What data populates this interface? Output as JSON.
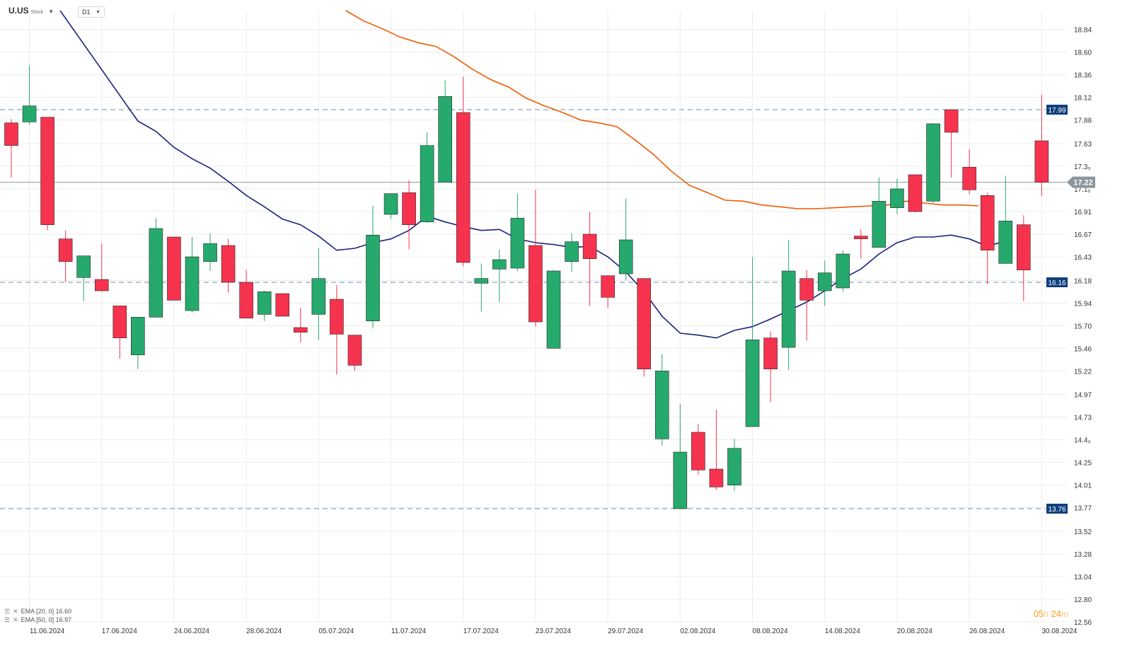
{
  "header": {
    "symbol": "U.US",
    "type": "Stock",
    "timeframe": "D1"
  },
  "indicators": [
    {
      "label": "EMA [20, 0] 16.60",
      "color": "#1a237e"
    },
    {
      "label": "EMA [50, 0] 16.97",
      "color": "#ee5a00"
    }
  ],
  "timer": {
    "hours": "05",
    "hours_unit": "h",
    "minutes": "24",
    "minutes_unit": "m"
  },
  "colors": {
    "up": "#26a96c",
    "down": "#f6334e",
    "ema20": "#1a237e",
    "ema50": "#ee5a00",
    "hline": "#6b8fb5",
    "label_bg": "#0f3f7c",
    "grid": "#ececec"
  },
  "chart_data": {
    "type": "candlestick",
    "symbol": "U.US",
    "timeframe": "D1",
    "ylim": [
      12.56,
      19.04
    ],
    "y_ticks": [
      12.56,
      12.8,
      13.04,
      13.28,
      13.52,
      13.77,
      14.01,
      14.25,
      14.49,
      14.73,
      14.97,
      15.22,
      15.46,
      15.7,
      15.94,
      16.18,
      16.43,
      16.67,
      16.91,
      17.15,
      17.39,
      17.63,
      17.88,
      18.12,
      18.36,
      18.6,
      18.84
    ],
    "y_tick_labels": [
      "12.56",
      "12.80",
      "13.04",
      "13.28",
      "13.52",
      "13.77",
      "14.01",
      "14.25",
      "14.4₉",
      "14.73",
      "14.97",
      "15.22",
      "15.46",
      "15.70",
      "15.94",
      "16.18",
      "16.43",
      "16.67",
      "16.91",
      "17.1₅",
      "17.3₉",
      "17.63",
      "17.88",
      "18.12",
      "18.36",
      "18.60",
      "18.84"
    ],
    "x_labels": [
      {
        "i": 1,
        "label": "11.06.2024"
      },
      {
        "i": 5,
        "label": "17.06.2024"
      },
      {
        "i": 9,
        "label": "24.06.2024"
      },
      {
        "i": 13,
        "label": "28.06.2024"
      },
      {
        "i": 17,
        "label": "05.07.2024"
      },
      {
        "i": 21,
        "label": "11.07.2024"
      },
      {
        "i": 25,
        "label": "17.07.2024"
      },
      {
        "i": 29,
        "label": "23.07.2024"
      },
      {
        "i": 33,
        "label": "29.07.2024"
      },
      {
        "i": 37,
        "label": "02.08.2024"
      },
      {
        "i": 41,
        "label": "08.08.2024"
      },
      {
        "i": 45,
        "label": "14.08.2024"
      },
      {
        "i": 49,
        "label": "20.08.2024"
      },
      {
        "i": 53,
        "label": "26.08.2024"
      },
      {
        "i": 57,
        "label": "30.08.2024"
      }
    ],
    "candles": [
      {
        "o": 17.85,
        "h": 17.89,
        "l": 17.27,
        "c": 17.61
      },
      {
        "o": 17.86,
        "h": 18.46,
        "l": 17.83,
        "c": 18.03
      },
      {
        "o": 17.91,
        "h": 17.91,
        "l": 16.71,
        "c": 16.77
      },
      {
        "o": 16.62,
        "h": 16.71,
        "l": 16.16,
        "c": 16.38
      },
      {
        "o": 16.21,
        "h": 16.43,
        "l": 15.96,
        "c": 16.44
      },
      {
        "o": 16.19,
        "h": 16.57,
        "l": 16.06,
        "c": 16.07
      },
      {
        "o": 15.91,
        "h": 15.91,
        "l": 15.35,
        "c": 15.57
      },
      {
        "o": 15.39,
        "h": 15.77,
        "l": 15.24,
        "c": 15.79
      },
      {
        "o": 15.79,
        "h": 16.84,
        "l": 15.79,
        "c": 16.73
      },
      {
        "o": 16.64,
        "h": 16.64,
        "l": 15.97,
        "c": 15.97
      },
      {
        "o": 15.86,
        "h": 16.64,
        "l": 15.84,
        "c": 16.43
      },
      {
        "o": 16.38,
        "h": 16.68,
        "l": 16.28,
        "c": 16.57
      },
      {
        "o": 16.55,
        "h": 16.62,
        "l": 16.05,
        "c": 16.16
      },
      {
        "o": 16.16,
        "h": 16.29,
        "l": 15.78,
        "c": 15.78
      },
      {
        "o": 15.82,
        "h": 16.07,
        "l": 15.75,
        "c": 16.06
      },
      {
        "o": 16.04,
        "h": 16.04,
        "l": 15.84,
        "c": 15.8
      },
      {
        "o": 15.68,
        "h": 15.89,
        "l": 15.52,
        "c": 15.63
      },
      {
        "o": 15.82,
        "h": 16.52,
        "l": 15.55,
        "c": 16.2
      },
      {
        "o": 15.98,
        "h": 16.13,
        "l": 15.18,
        "c": 15.61
      },
      {
        "o": 15.6,
        "h": 15.6,
        "l": 15.22,
        "c": 15.28
      },
      {
        "o": 15.75,
        "h": 16.97,
        "l": 15.67,
        "c": 16.66
      },
      {
        "o": 16.88,
        "h": 17.09,
        "l": 16.83,
        "c": 17.1
      },
      {
        "o": 17.11,
        "h": 17.24,
        "l": 16.51,
        "c": 16.77
      },
      {
        "o": 16.8,
        "h": 17.75,
        "l": 16.79,
        "c": 17.61
      },
      {
        "o": 17.22,
        "h": 18.3,
        "l": 17.22,
        "c": 18.13
      },
      {
        "o": 17.96,
        "h": 18.34,
        "l": 16.33,
        "c": 16.37
      },
      {
        "o": 16.15,
        "h": 16.36,
        "l": 15.85,
        "c": 16.2
      },
      {
        "o": 16.3,
        "h": 16.51,
        "l": 15.95,
        "c": 16.4
      },
      {
        "o": 16.31,
        "h": 17.1,
        "l": 16.28,
        "c": 16.84
      },
      {
        "o": 16.55,
        "h": 17.14,
        "l": 15.69,
        "c": 15.74
      },
      {
        "o": 15.46,
        "h": 16.29,
        "l": 15.46,
        "c": 16.28
      },
      {
        "o": 16.38,
        "h": 16.68,
        "l": 16.27,
        "c": 16.59
      },
      {
        "o": 16.67,
        "h": 16.91,
        "l": 15.91,
        "c": 16.41
      },
      {
        "o": 16.23,
        "h": 16.23,
        "l": 15.89,
        "c": 16.0
      },
      {
        "o": 16.25,
        "h": 17.05,
        "l": 16.18,
        "c": 16.61
      },
      {
        "o": 16.2,
        "h": 16.2,
        "l": 15.16,
        "c": 15.24
      },
      {
        "o": 14.5,
        "h": 15.4,
        "l": 14.43,
        "c": 15.22
      },
      {
        "o": 13.76,
        "h": 14.87,
        "l": 13.76,
        "c": 14.36
      },
      {
        "o": 14.57,
        "h": 14.66,
        "l": 14.12,
        "c": 14.17
      },
      {
        "o": 14.18,
        "h": 14.81,
        "l": 13.96,
        "c": 13.99
      },
      {
        "o": 14.01,
        "h": 14.5,
        "l": 13.95,
        "c": 14.4
      },
      {
        "o": 14.63,
        "h": 16.43,
        "l": 14.63,
        "c": 15.55
      },
      {
        "o": 15.57,
        "h": 15.64,
        "l": 14.89,
        "c": 15.24
      },
      {
        "o": 15.47,
        "h": 16.61,
        "l": 15.23,
        "c": 16.28
      },
      {
        "o": 16.2,
        "h": 16.29,
        "l": 15.54,
        "c": 15.97
      },
      {
        "o": 16.07,
        "h": 16.39,
        "l": 15.91,
        "c": 16.26
      },
      {
        "o": 16.1,
        "h": 16.5,
        "l": 16.06,
        "c": 16.46
      },
      {
        "o": 16.65,
        "h": 16.72,
        "l": 16.41,
        "c": 16.62
      },
      {
        "o": 16.53,
        "h": 17.27,
        "l": 16.53,
        "c": 17.02
      },
      {
        "o": 16.95,
        "h": 17.26,
        "l": 16.88,
        "c": 17.15
      },
      {
        "o": 17.3,
        "h": 17.3,
        "l": 16.9,
        "c": 16.91
      },
      {
        "o": 17.02,
        "h": 17.85,
        "l": 17.0,
        "c": 17.84
      },
      {
        "o": 17.99,
        "h": 17.99,
        "l": 17.27,
        "c": 17.75
      },
      {
        "o": 17.38,
        "h": 17.57,
        "l": 17.09,
        "c": 17.14
      },
      {
        "o": 17.08,
        "h": 17.11,
        "l": 16.14,
        "c": 16.5
      },
      {
        "o": 16.36,
        "h": 17.29,
        "l": 16.36,
        "c": 16.81
      },
      {
        "o": 16.77,
        "h": 16.87,
        "l": 15.96,
        "c": 16.29
      },
      {
        "o": 17.66,
        "h": 18.15,
        "l": 17.07,
        "c": 17.22
      }
    ],
    "series": [
      {
        "name": "EMA [20, 0] 16.60",
        "color": "#1a237e",
        "points": [
          {
            "i": 2.7,
            "v": 19.04
          },
          {
            "i": 7.0,
            "v": 17.87
          },
          {
            "i": 8.0,
            "v": 17.76
          },
          {
            "i": 9.0,
            "v": 17.59
          },
          {
            "i": 10.0,
            "v": 17.47
          },
          {
            "i": 11.0,
            "v": 17.37
          },
          {
            "i": 12.0,
            "v": 17.23
          },
          {
            "i": 13.0,
            "v": 17.08
          },
          {
            "i": 14.0,
            "v": 16.96
          },
          {
            "i": 15.0,
            "v": 16.83
          },
          {
            "i": 16.0,
            "v": 16.77
          },
          {
            "i": 17.0,
            "v": 16.65
          },
          {
            "i": 18.0,
            "v": 16.5
          },
          {
            "i": 19.0,
            "v": 16.52
          },
          {
            "i": 20.0,
            "v": 16.58
          },
          {
            "i": 21.0,
            "v": 16.62
          },
          {
            "i": 22.0,
            "v": 16.71
          },
          {
            "i": 23.0,
            "v": 16.86
          },
          {
            "i": 24.0,
            "v": 16.8
          },
          {
            "i": 25.0,
            "v": 16.75
          },
          {
            "i": 26.0,
            "v": 16.71
          },
          {
            "i": 27.0,
            "v": 16.72
          },
          {
            "i": 28.0,
            "v": 16.62
          },
          {
            "i": 29.0,
            "v": 16.58
          },
          {
            "i": 30.0,
            "v": 16.56
          },
          {
            "i": 31.0,
            "v": 16.53
          },
          {
            "i": 32.0,
            "v": 16.54
          },
          {
            "i": 33.0,
            "v": 16.43
          },
          {
            "i": 34.0,
            "v": 16.27
          },
          {
            "i": 35.0,
            "v": 16.06
          },
          {
            "i": 36.0,
            "v": 15.8
          },
          {
            "i": 37.0,
            "v": 15.62
          },
          {
            "i": 38.0,
            "v": 15.6
          },
          {
            "i": 39.0,
            "v": 15.57
          },
          {
            "i": 40.0,
            "v": 15.65
          },
          {
            "i": 41.0,
            "v": 15.69
          },
          {
            "i": 42.0,
            "v": 15.77
          },
          {
            "i": 43.0,
            "v": 15.86
          },
          {
            "i": 44.0,
            "v": 15.95
          },
          {
            "i": 45.0,
            "v": 16.07
          },
          {
            "i": 46.0,
            "v": 16.2
          },
          {
            "i": 47.0,
            "v": 16.3
          },
          {
            "i": 48.0,
            "v": 16.46
          },
          {
            "i": 49.0,
            "v": 16.58
          },
          {
            "i": 50.0,
            "v": 16.64
          },
          {
            "i": 51.0,
            "v": 16.64
          },
          {
            "i": 52.0,
            "v": 16.66
          },
          {
            "i": 53.0,
            "v": 16.62
          },
          {
            "i": 54.0,
            "v": 16.54
          },
          {
            "i": 55.0,
            "v": 16.6
          }
        ]
      },
      {
        "name": "EMA [50, 0] 16.97",
        "color": "#ee5a00",
        "points": [
          {
            "i": 18.5,
            "v": 19.04
          },
          {
            "i": 19.5,
            "v": 18.93
          },
          {
            "i": 20.5,
            "v": 18.85
          },
          {
            "i": 21.5,
            "v": 18.76
          },
          {
            "i": 22.5,
            "v": 18.7
          },
          {
            "i": 23.5,
            "v": 18.66
          },
          {
            "i": 24.5,
            "v": 18.55
          },
          {
            "i": 25.5,
            "v": 18.42
          },
          {
            "i": 26.5,
            "v": 18.31
          },
          {
            "i": 27.5,
            "v": 18.23
          },
          {
            "i": 28.5,
            "v": 18.11
          },
          {
            "i": 29.5,
            "v": 18.03
          },
          {
            "i": 30.5,
            "v": 17.96
          },
          {
            "i": 31.5,
            "v": 17.88
          },
          {
            "i": 32.5,
            "v": 17.85
          },
          {
            "i": 33.5,
            "v": 17.81
          },
          {
            "i": 34.5,
            "v": 17.67
          },
          {
            "i": 35.5,
            "v": 17.52
          },
          {
            "i": 36.5,
            "v": 17.34
          },
          {
            "i": 37.5,
            "v": 17.19
          },
          {
            "i": 38.5,
            "v": 17.11
          },
          {
            "i": 39.5,
            "v": 17.03
          },
          {
            "i": 40.5,
            "v": 17.02
          },
          {
            "i": 41.5,
            "v": 16.98
          },
          {
            "i": 42.5,
            "v": 16.96
          },
          {
            "i": 43.5,
            "v": 16.94
          },
          {
            "i": 44.5,
            "v": 16.94
          },
          {
            "i": 45.5,
            "v": 16.95
          },
          {
            "i": 46.5,
            "v": 16.96
          },
          {
            "i": 47.5,
            "v": 16.97
          },
          {
            "i": 48.5,
            "v": 16.98
          },
          {
            "i": 49.5,
            "v": 17.02
          },
          {
            "i": 50.5,
            "v": 17.0
          },
          {
            "i": 51.5,
            "v": 16.98
          },
          {
            "i": 52.5,
            "v": 16.98
          },
          {
            "i": 53.5,
            "v": 16.97
          }
        ]
      }
    ],
    "horizontal_lines": [
      {
        "value": 17.99,
        "label": "17.99",
        "style": "dashed"
      },
      {
        "value": 16.16,
        "label": "16.16",
        "style": "dashed"
      },
      {
        "value": 13.76,
        "label": "13.76",
        "style": "dashed"
      }
    ],
    "current_price": {
      "value": 17.22,
      "label": "17.22"
    },
    "grid": true
  }
}
